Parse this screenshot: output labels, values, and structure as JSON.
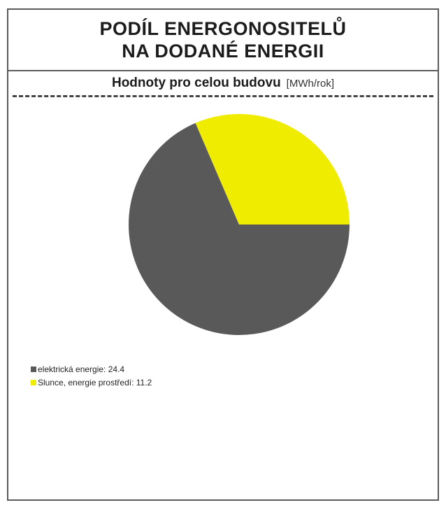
{
  "header": {
    "title_line1": "PODÍL ENERGONOSITELŮ",
    "title_line2": "NA DODANÉ ENERGII"
  },
  "subtitle": {
    "main": "Hodnoty pro celou budovu",
    "unit": "[MWh/rok]"
  },
  "legend": {
    "items": [
      {
        "label": "elektrická energie: 24.4",
        "color": "#595959"
      },
      {
        "label": "Slunce, energie prostředí: 11.2",
        "color": "#f0ec00"
      }
    ]
  },
  "chart_data": {
    "type": "pie",
    "categories": [
      "elektrická energie",
      "Slunce, energie prostředí"
    ],
    "values": [
      24.4,
      11.2
    ],
    "colors": [
      "#595959",
      "#f0ec00"
    ],
    "unit": "MWh/rok",
    "title": "PODÍL ENERGONOSITELŮ NA DODANÉ ENERGII",
    "subtitle": "Hodnoty pro celou budovu",
    "legend_position": "bottom-left"
  }
}
